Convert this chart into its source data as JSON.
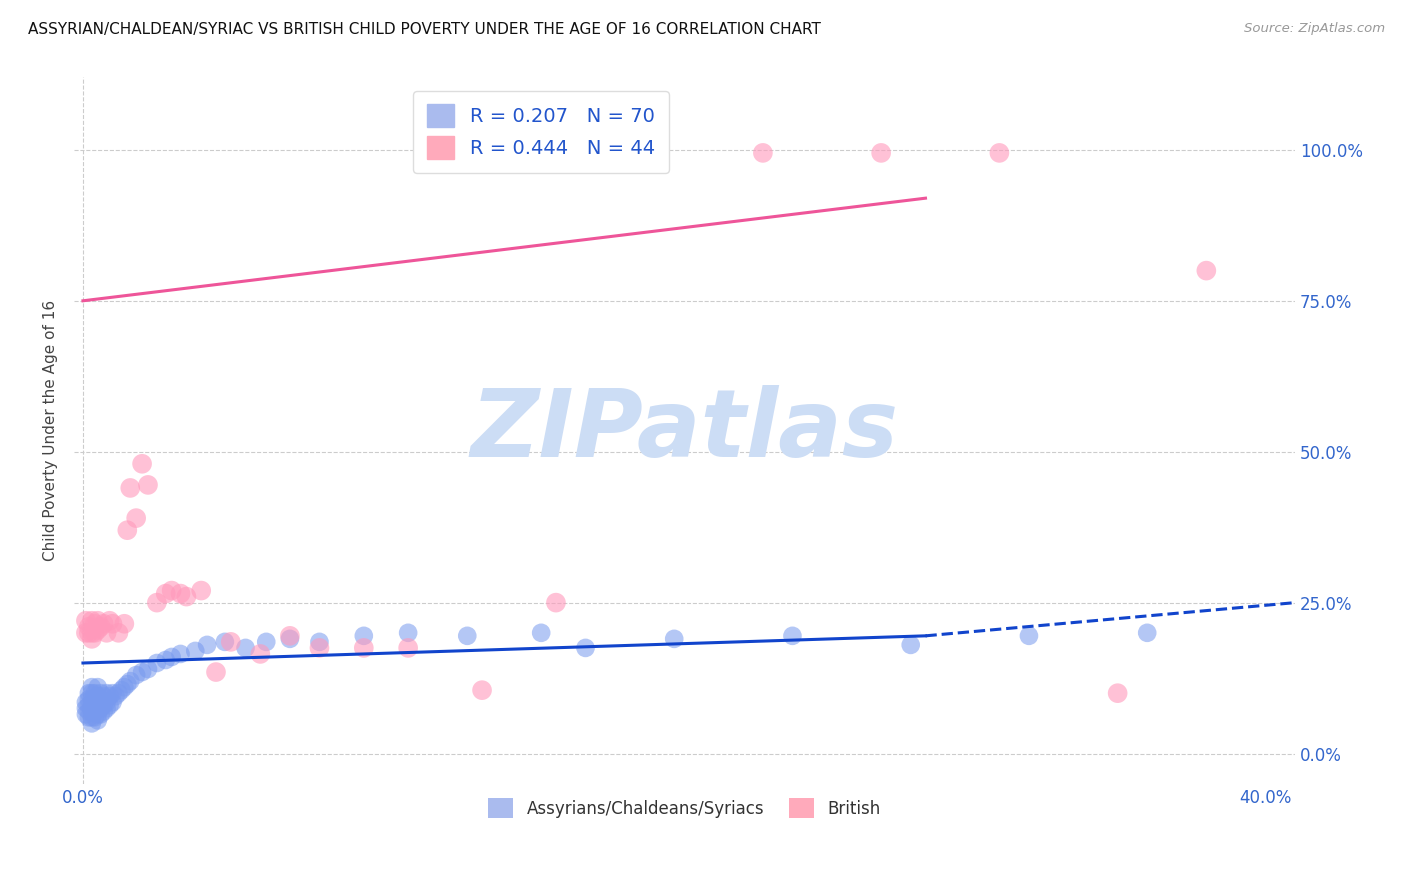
{
  "title": "ASSYRIAN/CHALDEAN/SYRIAC VS BRITISH CHILD POVERTY UNDER THE AGE OF 16 CORRELATION CHART",
  "source": "Source: ZipAtlas.com",
  "ylabel": "Child Poverty Under the Age of 16",
  "xlim": [
    -0.003,
    0.41
  ],
  "ylim": [
    -0.05,
    1.12
  ],
  "xticks": [
    0.0,
    0.4
  ],
  "xtick_labels": [
    "0.0%",
    "40.0%"
  ],
  "ytick_positions": [
    0.0,
    0.25,
    0.5,
    0.75,
    1.0
  ],
  "ytick_labels": [
    "0.0%",
    "25.0%",
    "50.0%",
    "75.0%",
    "100.0%"
  ],
  "legend_entries": [
    {
      "label": "R = 0.207   N = 70",
      "color": "#6699ff"
    },
    {
      "label": "R = 0.444   N = 44",
      "color": "#ff99bb"
    }
  ],
  "bottom_legend": [
    {
      "label": "Assyrians/Chaldeans/Syriacs",
      "color": "#88aaff"
    },
    {
      "label": "British",
      "color": "#ff99bb"
    }
  ],
  "watermark": "ZIPatlas",
  "watermark_color": "#ccddf5",
  "background_color": "#ffffff",
  "grid_color": "#cccccc",
  "blue_line_color": "#1144cc",
  "pink_line_color": "#ee5599",
  "blue_scatter_color": "#7799ee",
  "pink_scatter_color": "#ff99bb",
  "blue_scatter_x": [
    0.001,
    0.001,
    0.001,
    0.002,
    0.002,
    0.002,
    0.002,
    0.002,
    0.003,
    0.003,
    0.003,
    0.003,
    0.003,
    0.003,
    0.003,
    0.004,
    0.004,
    0.004,
    0.004,
    0.004,
    0.005,
    0.005,
    0.005,
    0.005,
    0.005,
    0.005,
    0.006,
    0.006,
    0.006,
    0.006,
    0.007,
    0.007,
    0.007,
    0.008,
    0.008,
    0.008,
    0.009,
    0.009,
    0.01,
    0.01,
    0.011,
    0.012,
    0.013,
    0.014,
    0.015,
    0.016,
    0.018,
    0.02,
    0.022,
    0.025,
    0.028,
    0.03,
    0.033,
    0.038,
    0.042,
    0.048,
    0.055,
    0.062,
    0.07,
    0.08,
    0.095,
    0.11,
    0.13,
    0.155,
    0.17,
    0.2,
    0.24,
    0.28,
    0.32,
    0.36
  ],
  "blue_scatter_y": [
    0.065,
    0.075,
    0.085,
    0.06,
    0.07,
    0.08,
    0.09,
    0.1,
    0.05,
    0.06,
    0.07,
    0.08,
    0.09,
    0.1,
    0.11,
    0.06,
    0.07,
    0.08,
    0.09,
    0.1,
    0.055,
    0.065,
    0.075,
    0.085,
    0.095,
    0.11,
    0.065,
    0.075,
    0.085,
    0.1,
    0.07,
    0.08,
    0.095,
    0.075,
    0.085,
    0.1,
    0.08,
    0.095,
    0.085,
    0.1,
    0.095,
    0.1,
    0.105,
    0.11,
    0.115,
    0.12,
    0.13,
    0.135,
    0.14,
    0.15,
    0.155,
    0.16,
    0.165,
    0.17,
    0.18,
    0.185,
    0.175,
    0.185,
    0.19,
    0.185,
    0.195,
    0.2,
    0.195,
    0.2,
    0.175,
    0.19,
    0.195,
    0.18,
    0.195,
    0.2
  ],
  "pink_scatter_x": [
    0.001,
    0.001,
    0.002,
    0.002,
    0.003,
    0.003,
    0.003,
    0.004,
    0.004,
    0.005,
    0.005,
    0.006,
    0.007,
    0.008,
    0.009,
    0.01,
    0.012,
    0.014,
    0.015,
    0.016,
    0.018,
    0.02,
    0.022,
    0.025,
    0.028,
    0.03,
    0.033,
    0.035,
    0.04,
    0.045,
    0.05,
    0.06,
    0.07,
    0.08,
    0.095,
    0.11,
    0.135,
    0.16,
    0.195,
    0.23,
    0.27,
    0.31,
    0.35,
    0.38
  ],
  "pink_scatter_y": [
    0.2,
    0.22,
    0.2,
    0.21,
    0.19,
    0.2,
    0.22,
    0.2,
    0.215,
    0.205,
    0.22,
    0.21,
    0.215,
    0.2,
    0.22,
    0.215,
    0.2,
    0.215,
    0.37,
    0.44,
    0.39,
    0.48,
    0.445,
    0.25,
    0.265,
    0.27,
    0.265,
    0.26,
    0.27,
    0.135,
    0.185,
    0.165,
    0.195,
    0.175,
    0.175,
    0.175,
    0.105,
    0.25,
    0.995,
    0.995,
    0.995,
    0.995,
    0.1,
    0.8
  ],
  "blue_line_x0": 0.0,
  "blue_line_x_solid_end": 0.285,
  "blue_line_x1": 0.41,
  "blue_line_y0": 0.15,
  "blue_line_y_solid_end": 0.195,
  "blue_line_y1": 0.25,
  "pink_line_x0": 0.0,
  "pink_line_x1": 0.285,
  "pink_line_y0": 0.75,
  "pink_line_y1": 0.92
}
